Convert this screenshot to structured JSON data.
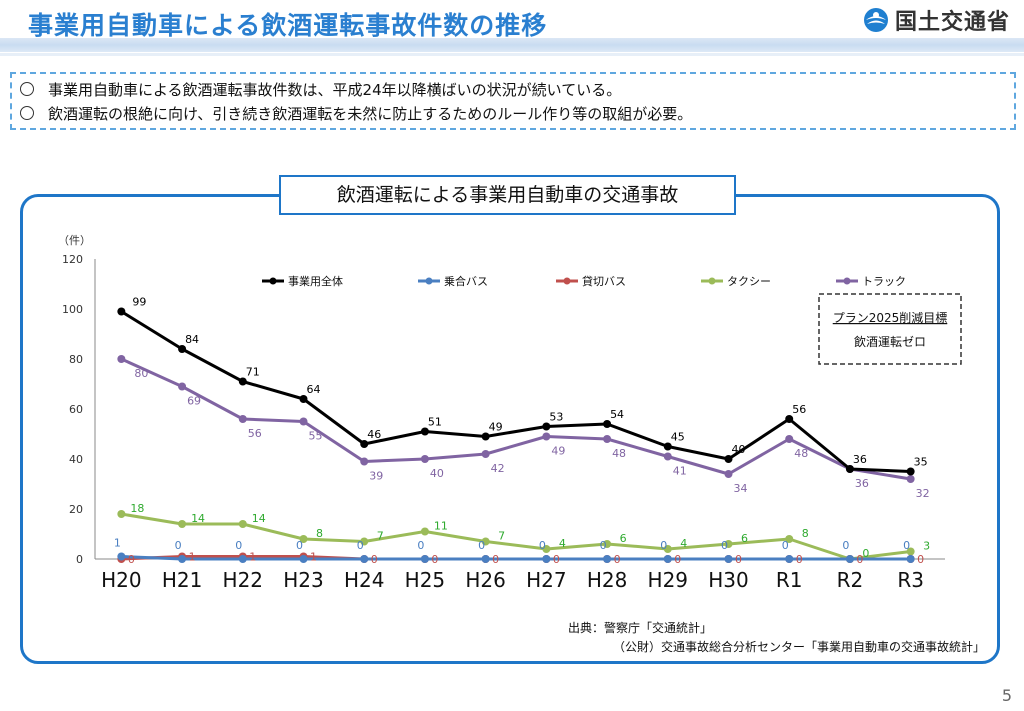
{
  "header": {
    "title": "事業用自動車による飲酒運転事故件数の推移",
    "agency": "国土交通省"
  },
  "summary": {
    "items": [
      "事業用自動車による飲酒運転事故件数は、平成24年以降横ばいの状況が続いている。",
      "飲酒運転の根絶に向け、引き続き飲酒運転を未然に防止するためのルール作り等の取組が必要。"
    ]
  },
  "panel": {
    "title": "飲酒運転による事業用自動車の交通事故"
  },
  "target_box": {
    "line1": "プラン2025削減目標",
    "line2": "飲酒運転ゼロ"
  },
  "source": {
    "line1": "出典：警察庁「交通統計」",
    "line2": "（公財）交通事故総合分析センター「事業用自動車の交通事故統計」"
  },
  "page_number": "5",
  "chart_data": {
    "type": "line",
    "ylabel": "（件）",
    "ylim": [
      0,
      120
    ],
    "yticks": [
      0,
      20,
      40,
      60,
      80,
      100,
      120
    ],
    "categories": [
      "H20",
      "H21",
      "H22",
      "H23",
      "H24",
      "H25",
      "H26",
      "H27",
      "H28",
      "H29",
      "H30",
      "R1",
      "R2",
      "R3"
    ],
    "legend_position": "top",
    "series": [
      {
        "name": "事業用全体",
        "color": "#000000",
        "values": [
          99,
          84,
          71,
          64,
          46,
          51,
          49,
          53,
          54,
          45,
          40,
          56,
          36,
          35
        ]
      },
      {
        "name": "乗合バス",
        "color": "#4a7fc1",
        "values": [
          1,
          0,
          0,
          0,
          0,
          0,
          0,
          0,
          0,
          0,
          0,
          0,
          0,
          0
        ]
      },
      {
        "name": "貸切バス",
        "color": "#c0504d",
        "values": [
          0,
          1,
          1,
          1,
          0,
          0,
          0,
          0,
          0,
          0,
          0,
          0,
          0,
          0
        ]
      },
      {
        "name": "タクシー",
        "color": "#9bbb59",
        "values": [
          18,
          14,
          14,
          8,
          7,
          11,
          7,
          4,
          6,
          4,
          6,
          8,
          0,
          3
        ]
      },
      {
        "name": "トラック",
        "color": "#8064a2",
        "values": [
          80,
          69,
          56,
          55,
          39,
          40,
          42,
          49,
          48,
          41,
          34,
          48,
          36,
          32
        ]
      }
    ]
  }
}
